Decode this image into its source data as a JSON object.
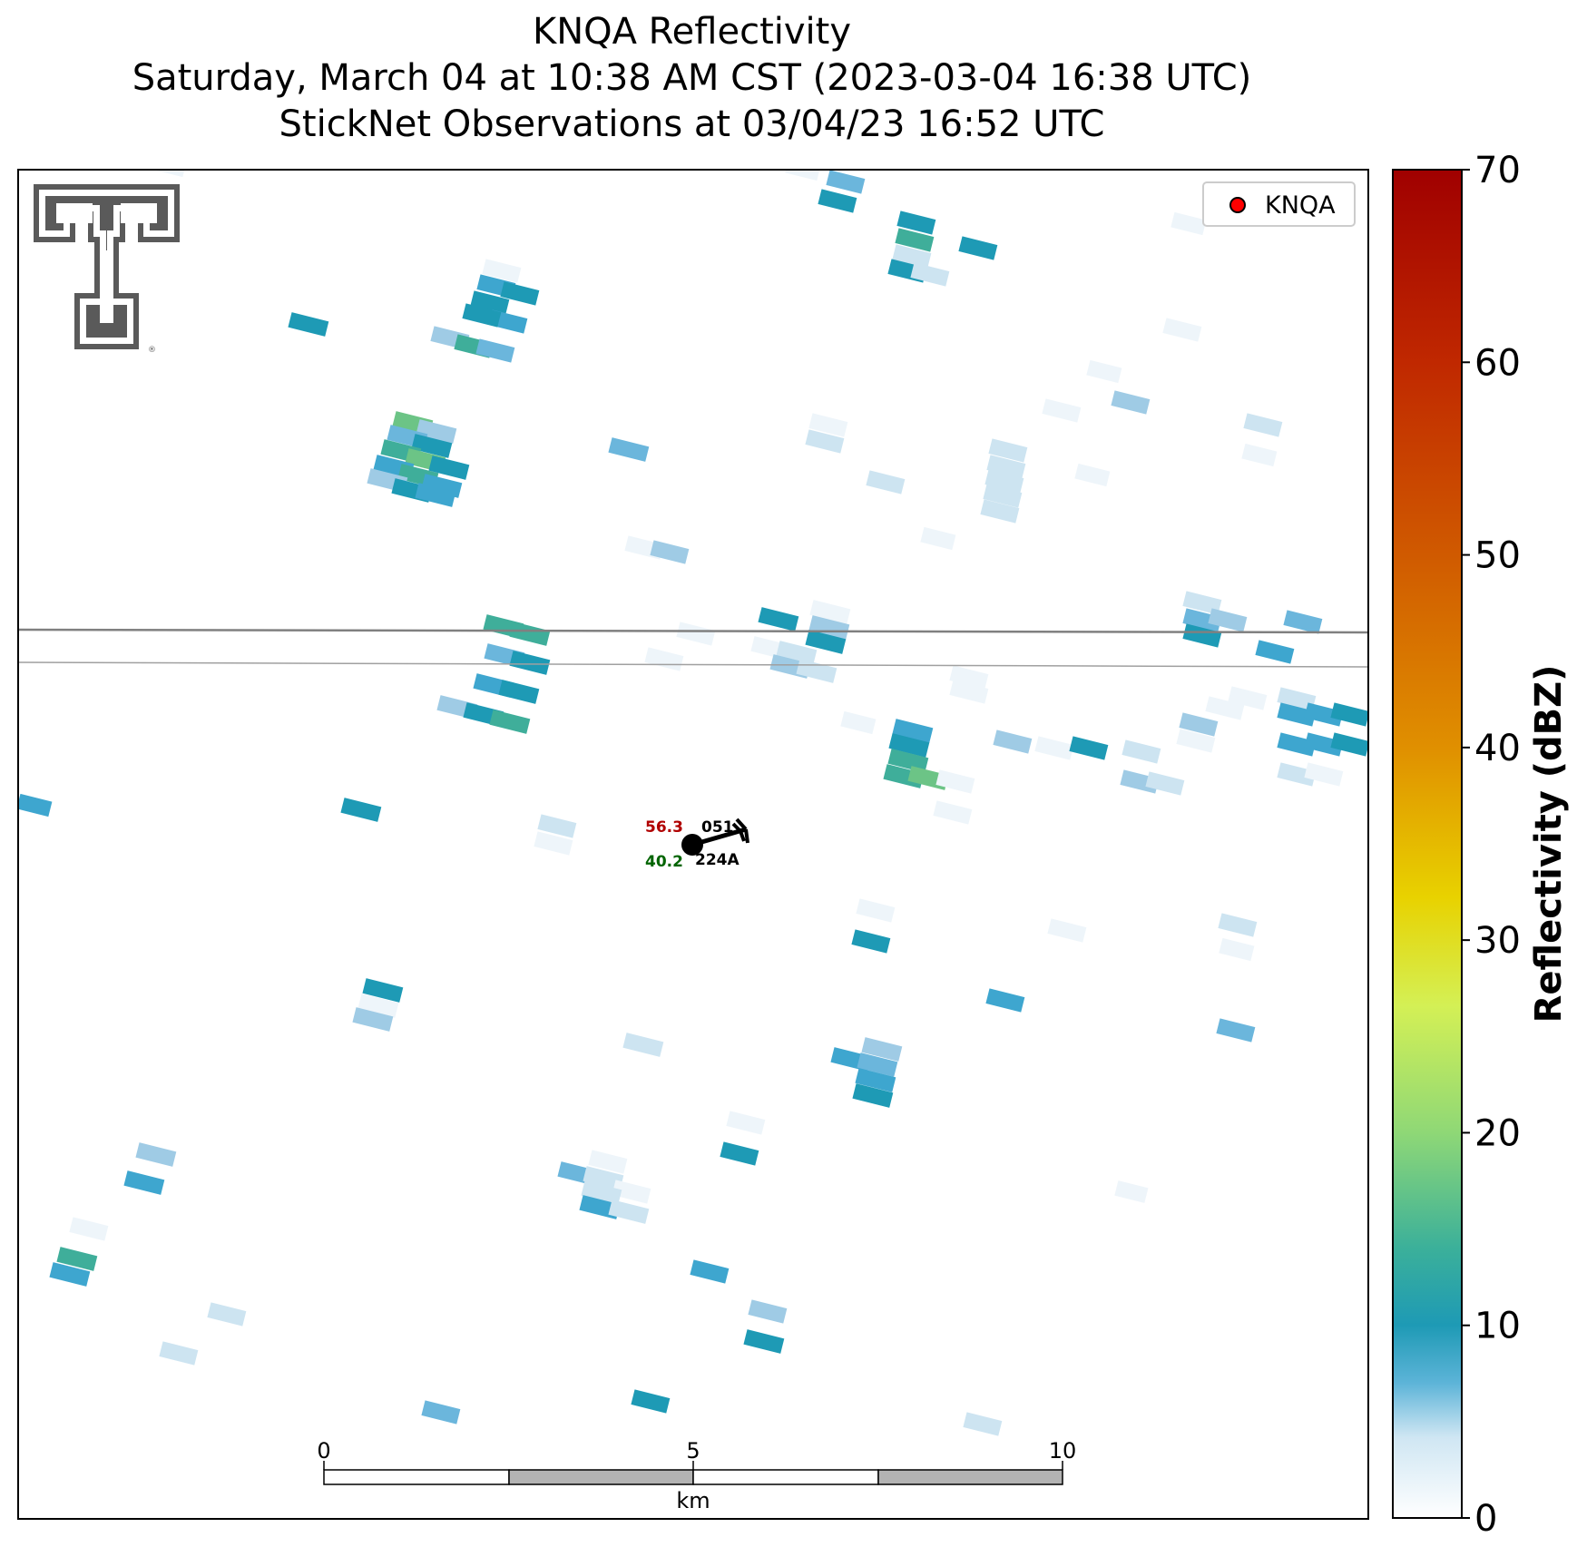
{
  "title": {
    "line1": "KNQA Reflectivity",
    "line2": "Saturday, March 04 at 10:38 AM CST (2023-03-04 16:38 UTC)",
    "line3": "StickNet Observations at 03/04/23 16:52 UTC"
  },
  "legend": {
    "label": "KNQA",
    "marker_color": "#ff0000"
  },
  "logo": {
    "name": "texas-tech-double-t-logo",
    "trademark": "®"
  },
  "colorbar": {
    "label": "Reflectivity (dBZ)",
    "min": 0,
    "max": 70,
    "ticks": [
      "0",
      "10",
      "20",
      "30",
      "40",
      "50",
      "60",
      "70"
    ],
    "colors": [
      "#ffffff",
      "#99cce6",
      "#1e9ab5",
      "#4fbf96",
      "#8fd876",
      "#e6f24e",
      "#e8c000",
      "#e08a00",
      "#c84000",
      "#a00000"
    ]
  },
  "scale_bar": {
    "unit": "km",
    "ticks": [
      "0",
      "5",
      "10"
    ]
  },
  "station": {
    "id": "224A",
    "temperature": "56.3",
    "dewpoint": "40.2",
    "pressure": "051",
    "temperature_color": "#b00000",
    "dewpoint_color": "#006400"
  },
  "chart_data": {
    "type": "heatmap",
    "title": "KNQA Reflectivity",
    "colorbar_label": "Reflectivity (dBZ)",
    "value_range": [
      0,
      70
    ],
    "scale_bar_km": [
      0,
      5,
      10
    ],
    "max_visible_dbz": 14
  }
}
